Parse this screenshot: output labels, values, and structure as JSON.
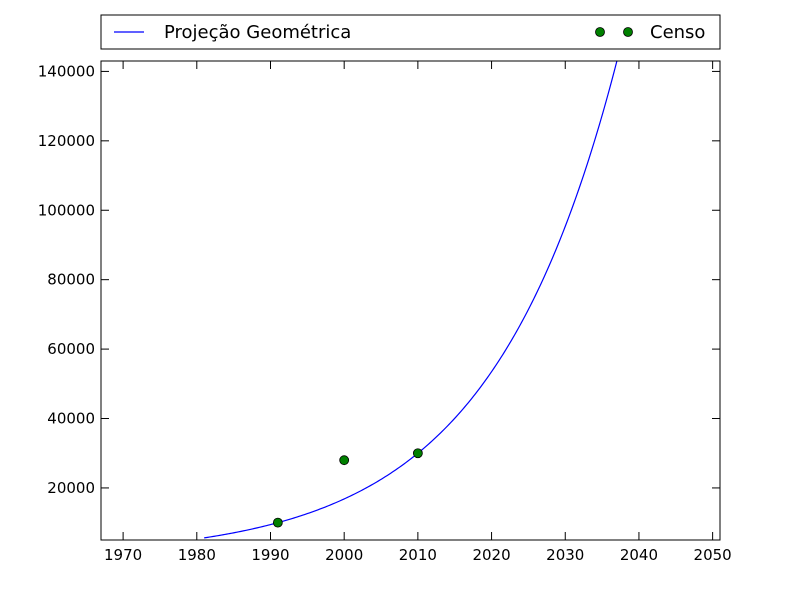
{
  "chart_data": {
    "type": "line",
    "title": "",
    "xlabel": "",
    "ylabel": "",
    "xlim": [
      1967,
      2051
    ],
    "ylim": [
      5000,
      143000
    ],
    "x_ticks": [
      1970,
      1980,
      1990,
      2000,
      2010,
      2020,
      2030,
      2040,
      2050
    ],
    "y_ticks": [
      20000,
      40000,
      60000,
      80000,
      100000,
      120000,
      140000
    ],
    "grid": false,
    "legend_placement": "top, above plot, full width",
    "series": [
      {
        "name": "Projeção Geométrica",
        "kind": "line",
        "color": "#0000ff",
        "model": "geometric",
        "x_start": 1981,
        "x_end": 2037.2,
        "anchor_points": [
          {
            "x": 1991,
            "y": 10000
          },
          {
            "x": 2010,
            "y": 30000
          }
        ]
      },
      {
        "name": "Censo",
        "kind": "markers",
        "color": "#008000",
        "points": [
          {
            "x": 1991,
            "y": 10000
          },
          {
            "x": 2000,
            "y": 28000
          },
          {
            "x": 2010,
            "y": 30000
          }
        ]
      }
    ]
  }
}
